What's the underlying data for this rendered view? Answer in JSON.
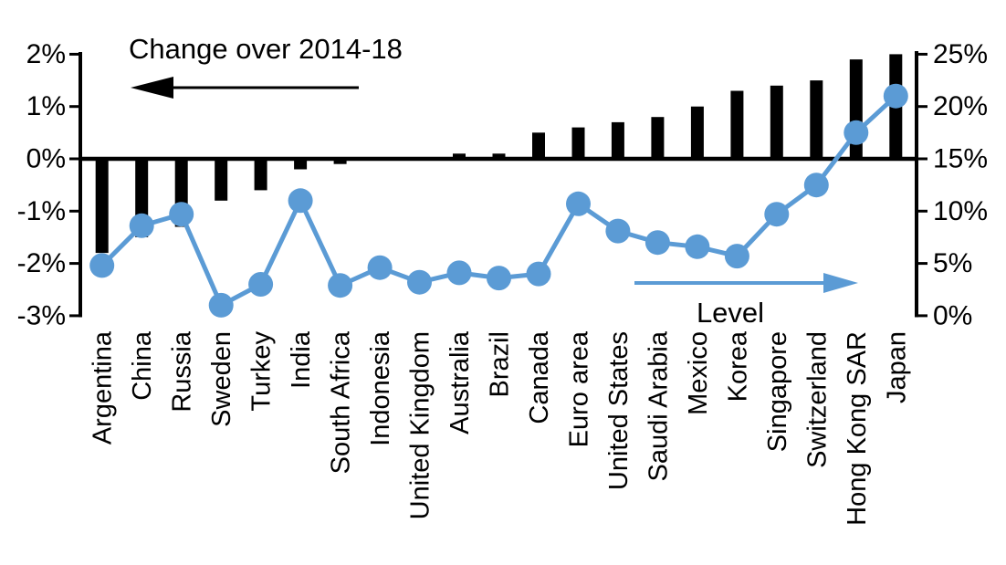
{
  "chart_data": {
    "type": "bar+line",
    "title": "",
    "categories": [
      "Argentina",
      "China",
      "Russia",
      "Sweden",
      "Turkey",
      "India",
      "South Africa",
      "Indonesia",
      "United Kingdom",
      "Australia",
      "Brazil",
      "Canada",
      "Euro area",
      "United States",
      "Saudi Arabia",
      "Mexico",
      "Korea",
      "Singapore",
      "Switzerland",
      "Hong Kong SAR",
      "Japan"
    ],
    "series": [
      {
        "name": "Change over 2014-18",
        "type": "bar",
        "axis": "left",
        "color": "#000000",
        "values": [
          -1.8,
          -1.5,
          -1.3,
          -0.8,
          -0.6,
          -0.2,
          -0.1,
          0.0,
          0.0,
          0.1,
          0.1,
          0.5,
          0.6,
          0.7,
          0.8,
          1.0,
          1.3,
          1.4,
          1.5,
          1.9,
          2.0
        ]
      },
      {
        "name": "Level",
        "type": "line",
        "axis": "right",
        "color": "#5B9BD5",
        "values": [
          4.8,
          8.6,
          9.7,
          1.0,
          3.0,
          11.0,
          2.9,
          4.6,
          3.2,
          4.1,
          3.6,
          4.0,
          10.7,
          8.1,
          7.0,
          6.6,
          5.7,
          9.7,
          12.5,
          17.5,
          21.0
        ]
      }
    ],
    "left_axis": {
      "min": -3,
      "max": 2,
      "tick_labels": [
        "2%",
        "1%",
        "0%",
        "-1%",
        "-2%",
        "-3%"
      ],
      "tick_values": [
        2,
        1,
        0,
        -1,
        -2,
        -3
      ]
    },
    "right_axis": {
      "min": 0,
      "max": 25,
      "tick_labels": [
        "25%",
        "20%",
        "15%",
        "10%",
        "5%",
        "0%"
      ],
      "tick_values": [
        25,
        20,
        15,
        10,
        5,
        0
      ]
    },
    "annotations": {
      "change_label": "Change over 2014-18",
      "level_label": "Level"
    },
    "grid": "off",
    "legend": "annotations with arrows (left-pointing black arrow for bars, right-pointing blue arrow for line)"
  },
  "colors": {
    "background": "#FFFFFF",
    "bar": "#000000",
    "line": "#5B9BD5",
    "axis": "#000000"
  }
}
